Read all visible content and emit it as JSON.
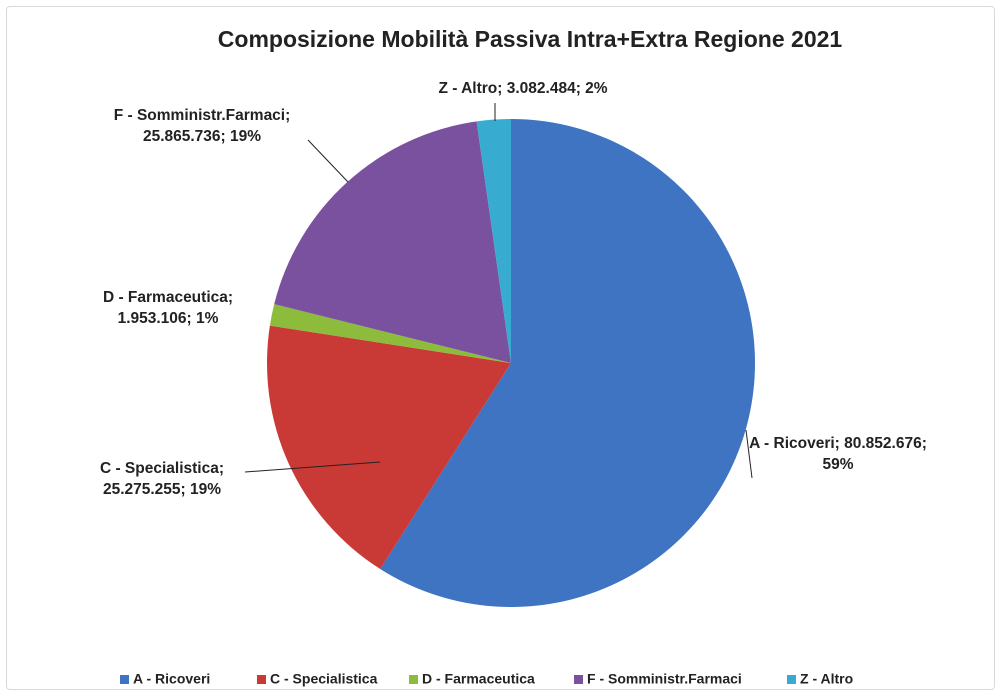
{
  "chart_data": {
    "type": "pie",
    "title": "Composizione Mobilità Passiva Intra+Extra Regione 2021",
    "categories": [
      "A - Ricoveri",
      "C - Specialistica",
      "D - Farmaceutica",
      "F - Somministr.Farmaci",
      "Z - Altro"
    ],
    "values": [
      80852676,
      25275255,
      1953106,
      25865736,
      3082484
    ],
    "value_labels": [
      "A - Ricoveri; 80.852.676; 59%",
      "C - Specialistica; 25.275.255; 19%",
      "D - Farmaceutica; 1.953.106; 1%",
      "F - Somministr.Farmaci; 25.865.736; 19%",
      "Z - Altro; 3.082.484; 2%"
    ],
    "colors": [
      "#3f74c2",
      "#c93a36",
      "#8dbb3c",
      "#7a519f",
      "#38acd0"
    ],
    "legend": "bottom"
  }
}
